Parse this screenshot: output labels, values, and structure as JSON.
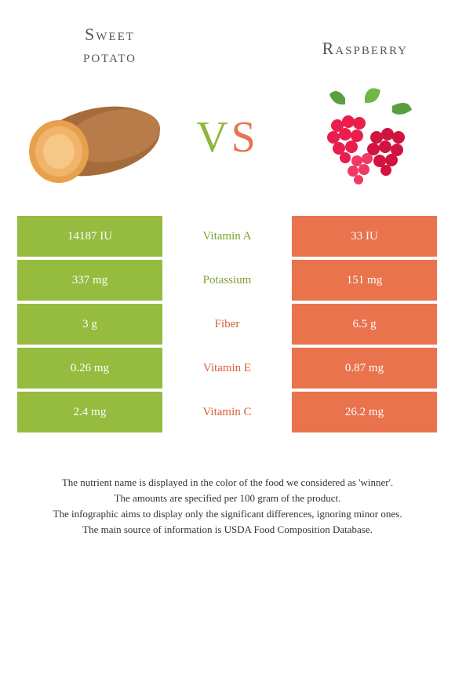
{
  "left_food": {
    "title_line1": "Sweet",
    "title_line2": "potato",
    "color": "#95bb3f"
  },
  "right_food": {
    "title": "Raspberry",
    "color": "#e8734d"
  },
  "vs": {
    "v": "V",
    "s": "S"
  },
  "colors": {
    "green_bg": "#95bb3f",
    "orange_bg": "#e8734d",
    "green_text": "#7da031",
    "orange_text": "#d85f3a",
    "body_bg": "#ffffff"
  },
  "rows": [
    {
      "left": "14187 IU",
      "nutrient": "Vitamin A",
      "right": "33 IU",
      "winner": "left"
    },
    {
      "left": "337 mg",
      "nutrient": "Potassium",
      "right": "151 mg",
      "winner": "left"
    },
    {
      "left": "3 g",
      "nutrient": "Fiber",
      "right": "6.5 g",
      "winner": "right"
    },
    {
      "left": "0.26 mg",
      "nutrient": "Vitamin E",
      "right": "0.87 mg",
      "winner": "right"
    },
    {
      "left": "2.4 mg",
      "nutrient": "Vitamin C",
      "right": "26.2 mg",
      "winner": "right"
    }
  ],
  "footer": [
    "The nutrient name is displayed in the color of the food we considered as 'winner'.",
    "The amounts are specified per 100 gram of the product.",
    "The infographic aims to display only the significant differences, ignoring minor ones.",
    "The main source of information is USDA Food Composition Database."
  ]
}
